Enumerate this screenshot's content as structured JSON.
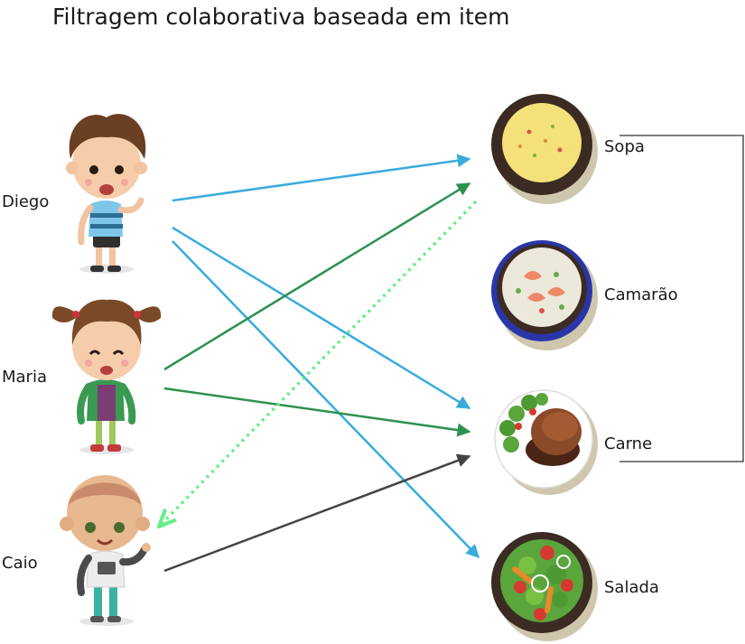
{
  "title": "Filtragem colaborativa baseada em item",
  "users": [
    {
      "id": "diego",
      "label": "Diego"
    },
    {
      "id": "maria",
      "label": "Maria"
    },
    {
      "id": "caio",
      "label": "Caio"
    }
  ],
  "items": [
    {
      "id": "sopa",
      "label": "Sopa"
    },
    {
      "id": "camarao",
      "label": "Camarão"
    },
    {
      "id": "carne",
      "label": "Carne"
    },
    {
      "id": "salada",
      "label": "Salada"
    }
  ],
  "bracket": {
    "connects": [
      "sopa",
      "carne"
    ]
  },
  "edges": [
    {
      "from": "diego",
      "to": "sopa",
      "color": "#3aabdc",
      "style": "solid"
    },
    {
      "from": "diego",
      "to": "carne",
      "color": "#3aabdc",
      "style": "solid"
    },
    {
      "from": "diego",
      "to": "salada",
      "color": "#3aabdc",
      "style": "solid"
    },
    {
      "from": "maria",
      "to": "sopa",
      "color": "#2e9150",
      "style": "solid"
    },
    {
      "from": "maria",
      "to": "carne",
      "color": "#2e9150",
      "style": "solid"
    },
    {
      "from": "caio",
      "to": "carne",
      "color": "#444444",
      "style": "solid"
    },
    {
      "from": "sopa",
      "to": "caio",
      "color": "#66ee88",
      "style": "dotted",
      "kind": "recommendation"
    }
  ]
}
